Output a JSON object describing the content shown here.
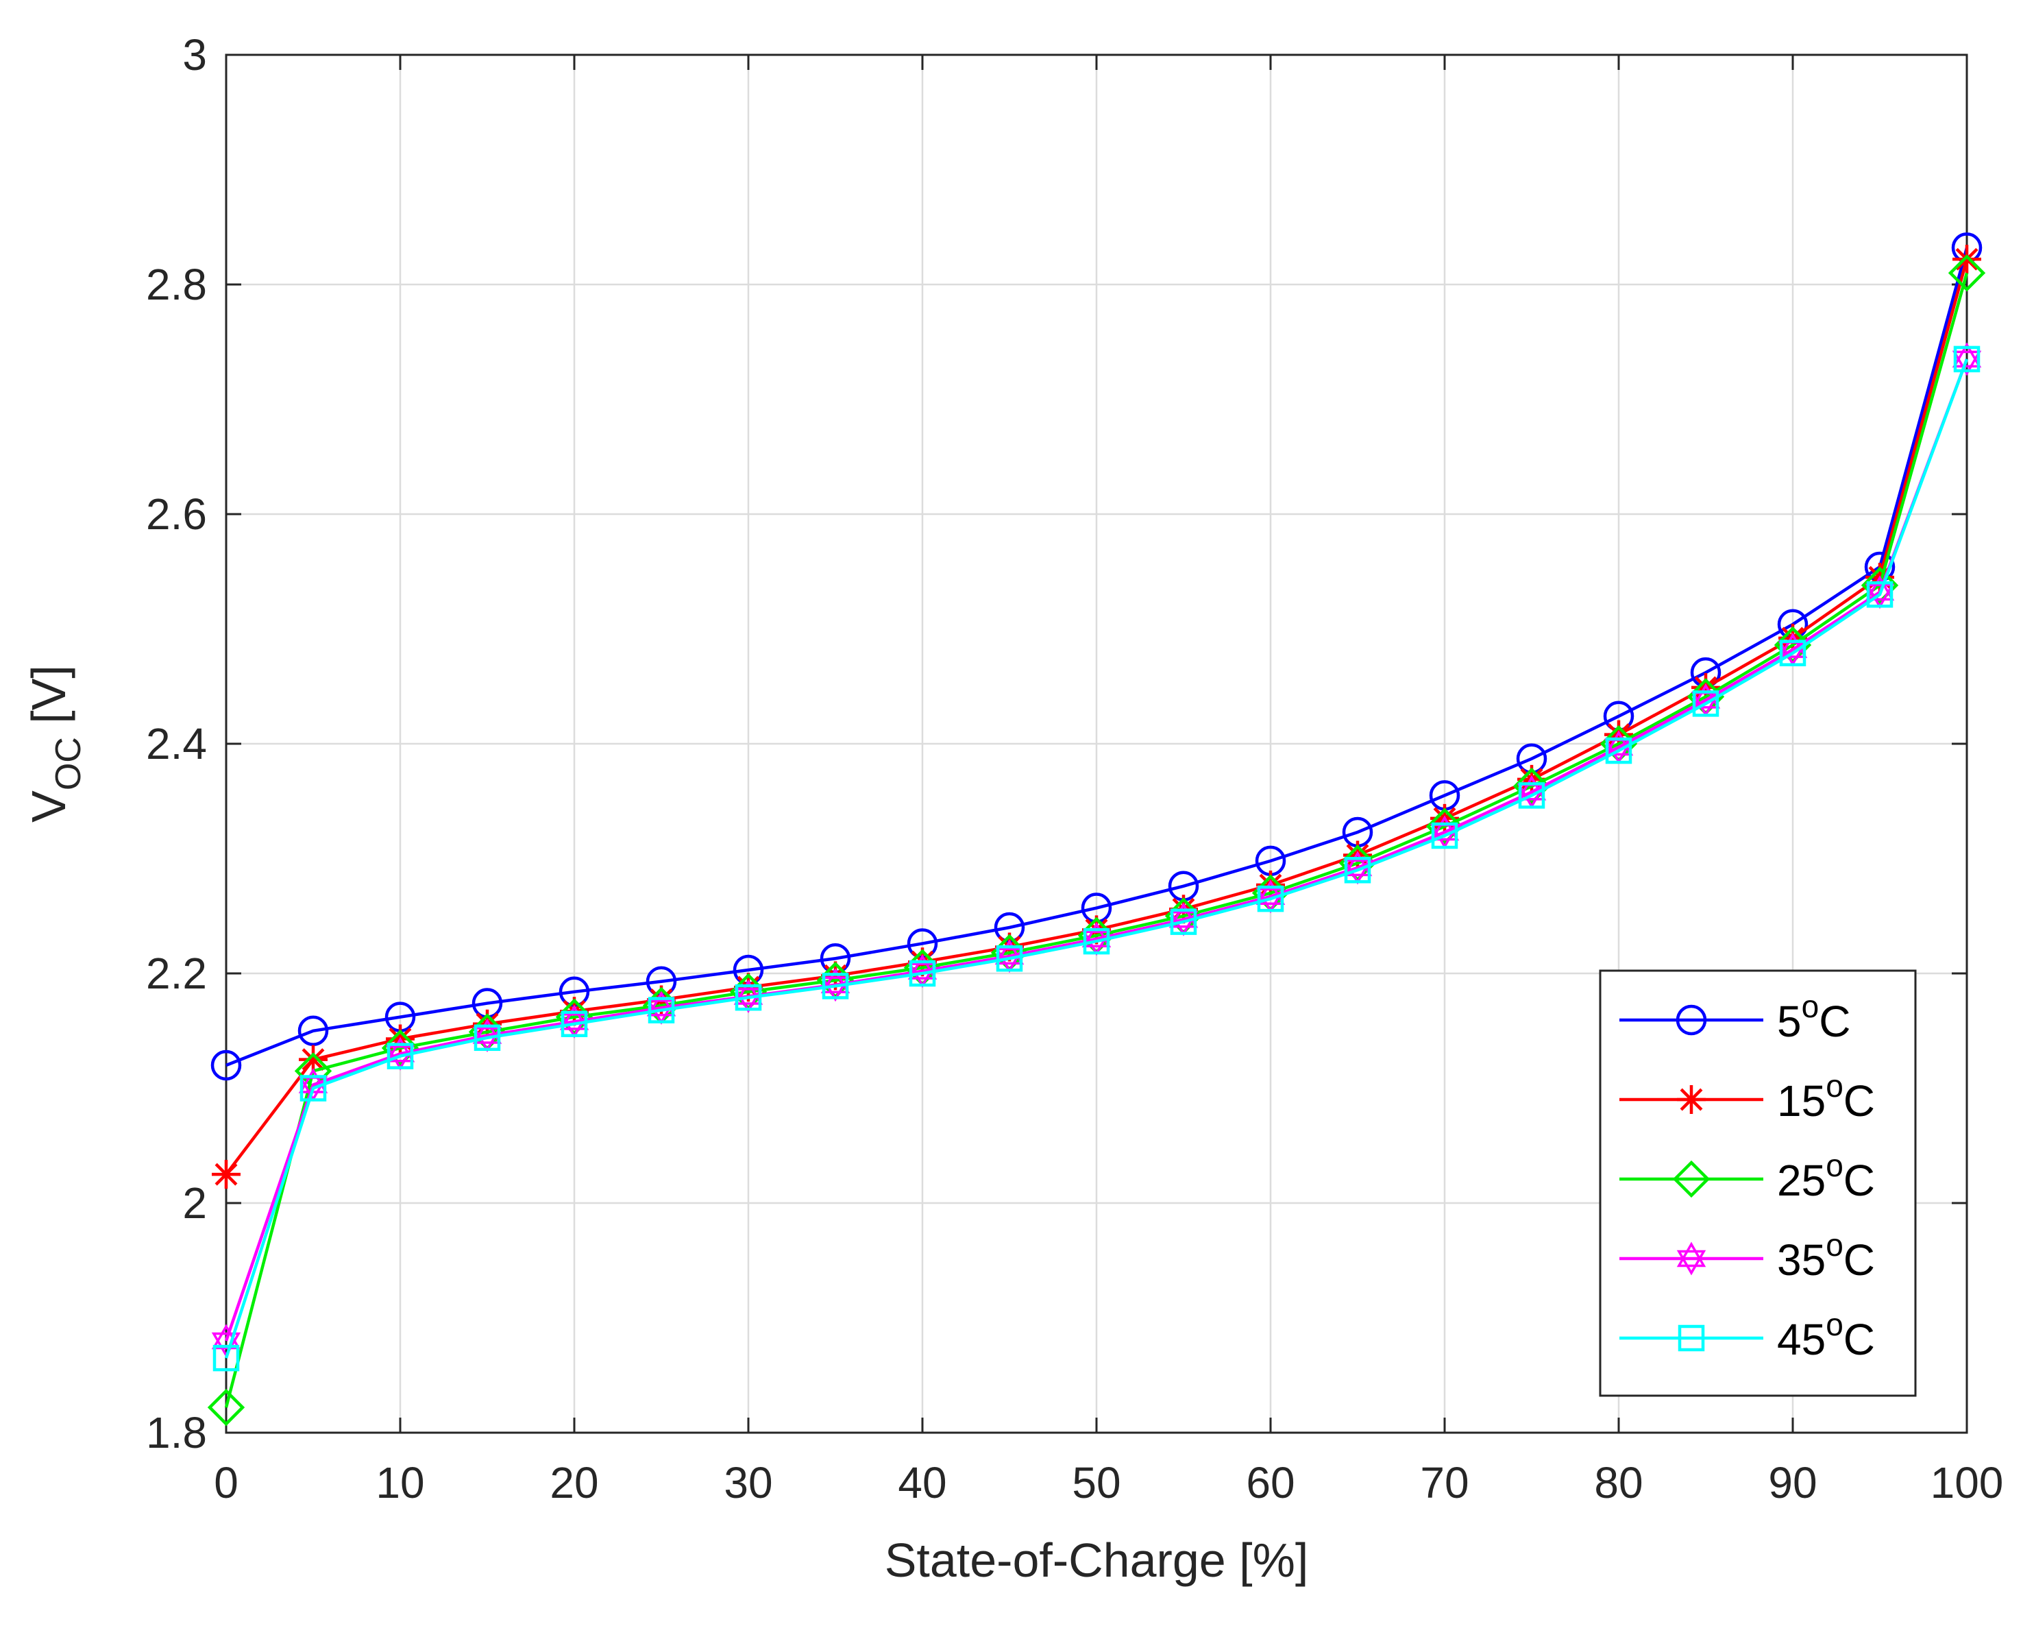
{
  "chart_data": {
    "type": "line",
    "title": "",
    "xlabel": "State-of-Charge [%]",
    "ylabel_main": "V",
    "ylabel_sub": "OC",
    "ylabel_unit": " [V]",
    "xlim": [
      0,
      100
    ],
    "ylim": [
      1.8,
      3.0
    ],
    "xticks": [
      0,
      10,
      20,
      30,
      40,
      50,
      60,
      70,
      80,
      90,
      100
    ],
    "yticks": [
      1.8,
      2.0,
      2.2,
      2.4,
      2.6,
      2.8,
      3.0
    ],
    "ytick_labels": [
      "1.8",
      "2",
      "2.2",
      "2.4",
      "2.6",
      "2.8",
      "3"
    ],
    "xtick_labels": [
      "0",
      "10",
      "20",
      "30",
      "40",
      "50",
      "60",
      "70",
      "80",
      "90",
      "100"
    ],
    "grid": true,
    "legend_position": "bottom-right",
    "x": [
      0,
      5,
      10,
      15,
      20,
      25,
      30,
      35,
      40,
      45,
      50,
      55,
      60,
      65,
      70,
      75,
      80,
      85,
      90,
      95,
      100
    ],
    "series": [
      {
        "name": "5°C",
        "legend_num": "5",
        "legend_unit": "C",
        "legend_sup": "o",
        "color": "#0000ff",
        "marker": "circle",
        "values": [
          2.12,
          2.15,
          2.162,
          2.174,
          2.184,
          2.193,
          2.203,
          2.213,
          2.226,
          2.24,
          2.257,
          2.276,
          2.298,
          2.323,
          2.355,
          2.387,
          2.424,
          2.462,
          2.504,
          2.554,
          2.832
        ]
      },
      {
        "name": "15°C",
        "legend_num": "15",
        "legend_unit": "C",
        "legend_sup": "o",
        "color": "#ff0000",
        "marker": "asterisk",
        "values": [
          2.025,
          2.125,
          2.143,
          2.156,
          2.167,
          2.177,
          2.188,
          2.198,
          2.21,
          2.223,
          2.238,
          2.256,
          2.277,
          2.303,
          2.335,
          2.369,
          2.408,
          2.449,
          2.492,
          2.545,
          2.822
        ]
      },
      {
        "name": "25°C",
        "legend_num": "25",
        "legend_unit": "C",
        "legend_sup": "o",
        "color": "#00ee00",
        "marker": "diamond",
        "values": [
          1.822,
          2.115,
          2.135,
          2.149,
          2.162,
          2.172,
          2.184,
          2.194,
          2.205,
          2.218,
          2.233,
          2.25,
          2.27,
          2.296,
          2.328,
          2.363,
          2.4,
          2.441,
          2.486,
          2.538,
          2.81
        ]
      },
      {
        "name": "35°C",
        "legend_num": "35",
        "legend_unit": "C",
        "legend_sup": "o",
        "color": "#ff00ff",
        "marker": "hexagram",
        "values": [
          1.88,
          2.103,
          2.13,
          2.146,
          2.158,
          2.17,
          2.18,
          2.19,
          2.202,
          2.215,
          2.23,
          2.247,
          2.267,
          2.292,
          2.323,
          2.358,
          2.397,
          2.438,
          2.482,
          2.532,
          2.735
        ]
      },
      {
        "name": "45°C",
        "legend_num": "45",
        "legend_unit": "C",
        "legend_sup": "o",
        "color": "#00ffff",
        "marker": "square",
        "values": [
          1.865,
          2.1,
          2.128,
          2.144,
          2.156,
          2.168,
          2.179,
          2.189,
          2.2,
          2.213,
          2.228,
          2.245,
          2.265,
          2.29,
          2.32,
          2.355,
          2.394,
          2.435,
          2.479,
          2.53,
          2.735
        ]
      }
    ]
  }
}
